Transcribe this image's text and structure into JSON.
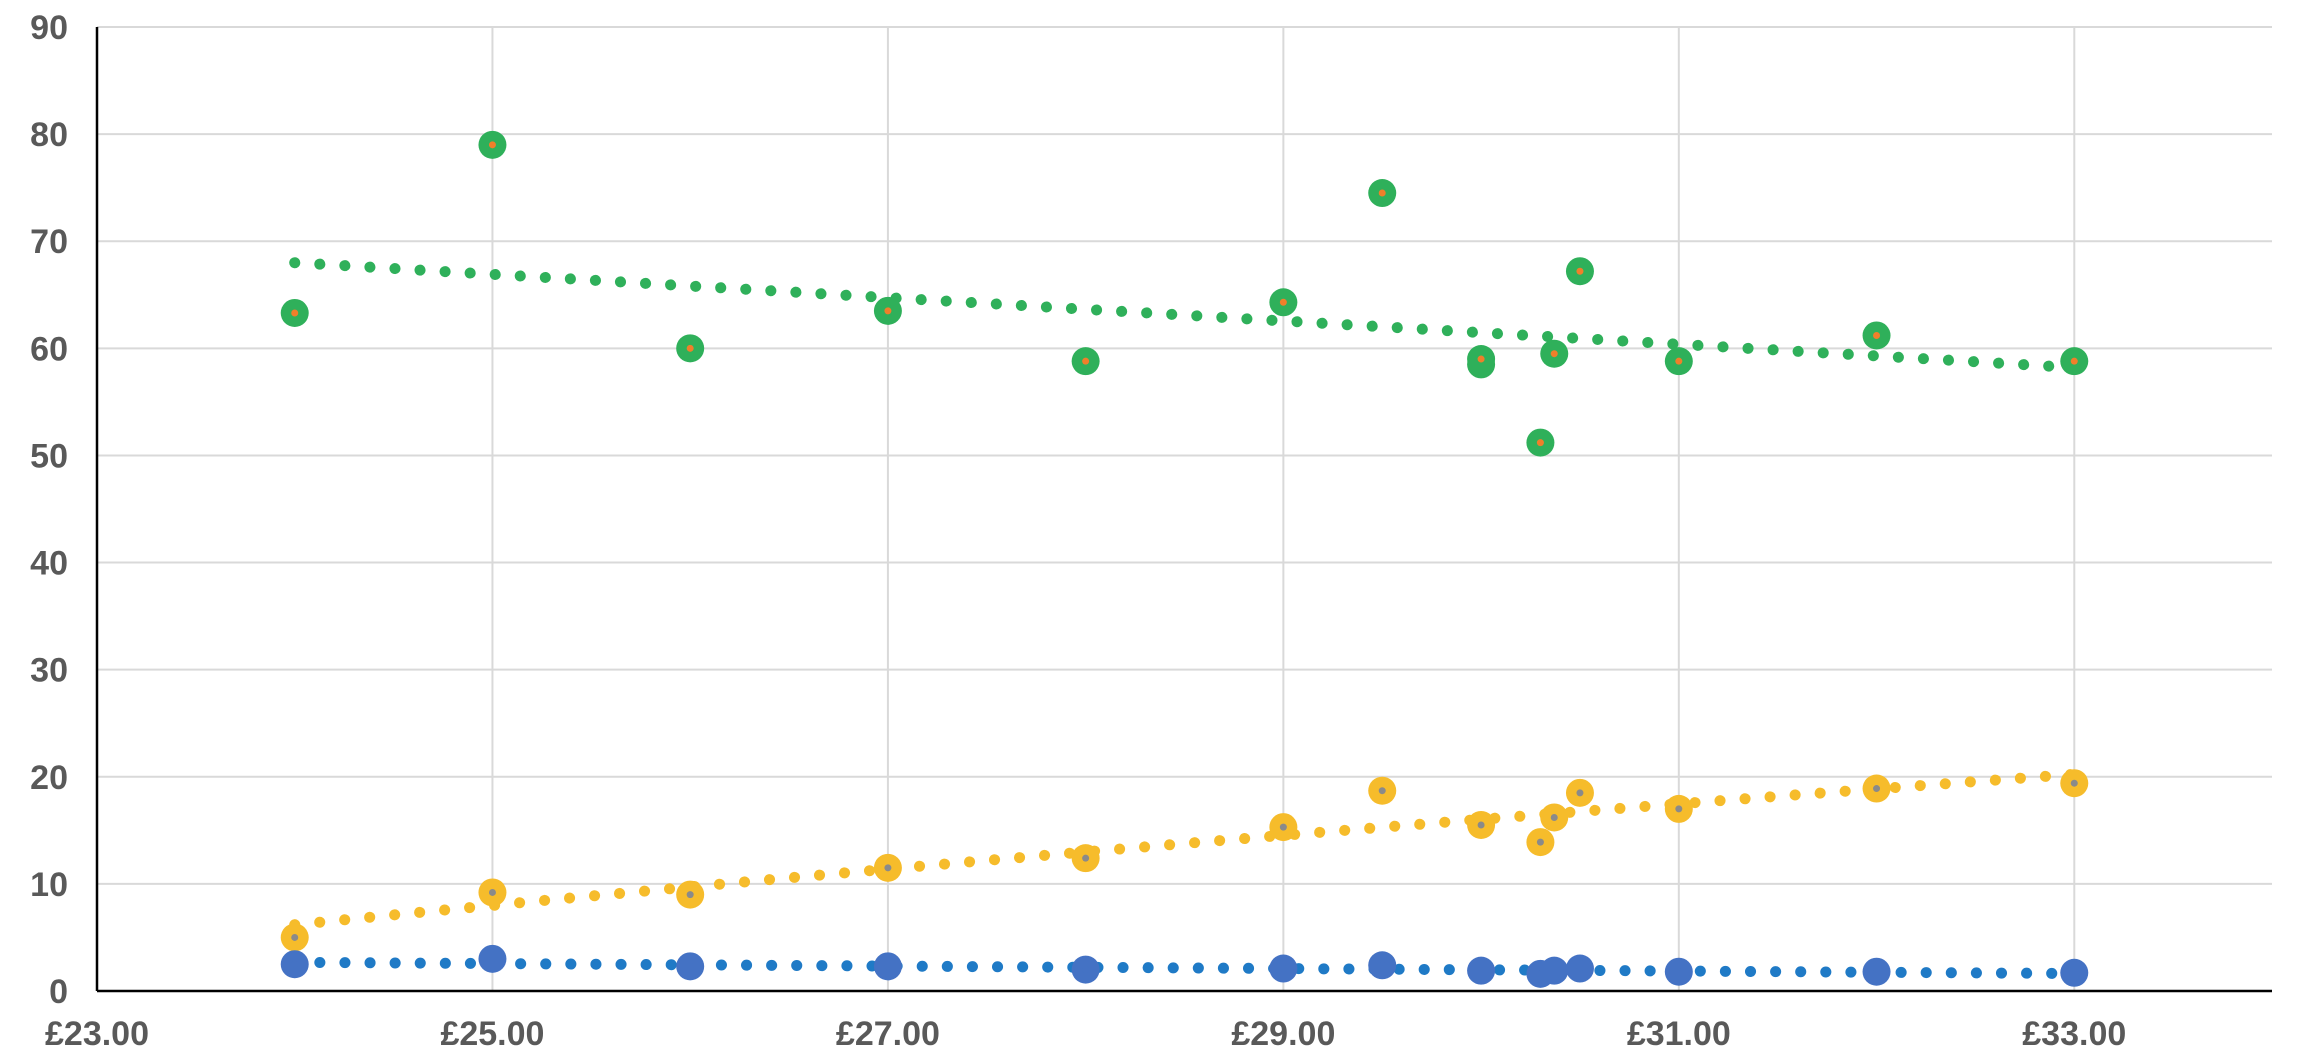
{
  "chart_data": {
    "type": "scatter",
    "title": "",
    "xlabel": "",
    "ylabel": "",
    "xlim": [
      23,
      34
    ],
    "ylim": [
      0,
      90
    ],
    "x_tick_values": [
      23,
      25,
      27,
      29,
      31,
      33
    ],
    "x_tick_labels": [
      "£23.00",
      "£25.00",
      "£27.00",
      "£29.00",
      "£31.00",
      "£33.00"
    ],
    "y_tick_values": [
      0,
      10,
      20,
      30,
      40,
      50,
      60,
      70,
      80,
      90
    ],
    "y_tick_labels": [
      "0",
      "10",
      "20",
      "30",
      "40",
      "50",
      "60",
      "70",
      "80",
      "90"
    ],
    "grid": true,
    "legend": "none",
    "series": [
      {
        "color": "#2fb05a",
        "center_color": "#f07f2a",
        "trendline": "linear",
        "trend_color": "#2fb05a",
        "points": [
          [
            24,
            63.3
          ],
          [
            25,
            79
          ],
          [
            26,
            60
          ],
          [
            27,
            63.5
          ],
          [
            28,
            58.8
          ],
          [
            29,
            64.3
          ],
          [
            29.5,
            74.5
          ],
          [
            30,
            58.5
          ],
          [
            30,
            59
          ],
          [
            30.3,
            51.2
          ],
          [
            30.37,
            59.5
          ],
          [
            30.5,
            67.2
          ],
          [
            31,
            58.8
          ],
          [
            32,
            61.2
          ],
          [
            33,
            58.8
          ]
        ]
      },
      {
        "color": "#f6bc2b",
        "center_color": "#8a8a8a",
        "trendline": "logarithmic",
        "trend_color": "#f6bc2b",
        "points": [
          [
            24,
            5
          ],
          [
            25,
            9.2
          ],
          [
            26,
            9
          ],
          [
            27,
            11.5
          ],
          [
            28,
            12.4
          ],
          [
            29,
            15.3
          ],
          [
            29.5,
            18.7
          ],
          [
            30,
            15.5
          ],
          [
            30.3,
            13.9
          ],
          [
            30.37,
            16.2
          ],
          [
            30.5,
            18.5
          ],
          [
            31,
            17
          ],
          [
            32,
            18.9
          ],
          [
            33,
            19.4
          ]
        ]
      },
      {
        "color": "#4472c4",
        "center_color": "#4472c4",
        "trendline": "linear",
        "trend_color": "#1f7ac6",
        "points": [
          [
            24,
            2.5
          ],
          [
            25,
            3
          ],
          [
            26,
            2.3
          ],
          [
            27,
            2.3
          ],
          [
            28,
            2
          ],
          [
            29,
            2.1
          ],
          [
            29.5,
            2.4
          ],
          [
            30,
            1.9
          ],
          [
            30.3,
            1.6
          ],
          [
            30.37,
            1.9
          ],
          [
            30.5,
            2.1
          ],
          [
            31,
            1.8
          ],
          [
            32,
            1.8
          ],
          [
            33,
            1.7
          ]
        ]
      }
    ]
  }
}
